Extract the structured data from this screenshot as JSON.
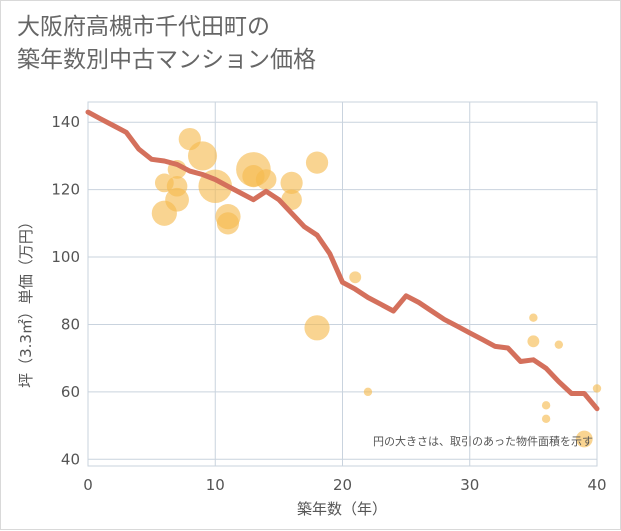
{
  "title": {
    "line1": "大阪府高槻市千代田町の",
    "line2": "築年数別中古マンション価格"
  },
  "note": "円の大きさは、取引のあった物件面積を示す",
  "chart_data": {
    "type": "scatter",
    "title": "大阪府高槻市千代田町の築年数別中古マンション価格",
    "xlabel": "築年数（年）",
    "ylabel": "坪（3.3㎡）単価（万円）",
    "xlim": [
      0,
      40
    ],
    "ylim": [
      38,
      146
    ],
    "xticks": [
      0,
      10,
      20,
      30,
      40
    ],
    "yticks": [
      40,
      60,
      80,
      100,
      120,
      140
    ],
    "grid": true,
    "colors": {
      "bubble": "#f5b94e",
      "line": "#d4705c",
      "grid": "#c9d3de"
    },
    "bubbles": [
      {
        "x": 6,
        "y": 122,
        "size": 5
      },
      {
        "x": 6,
        "y": 113,
        "size": 9
      },
      {
        "x": 7,
        "y": 126,
        "size": 5
      },
      {
        "x": 7,
        "y": 121,
        "size": 6
      },
      {
        "x": 7,
        "y": 117,
        "size": 8
      },
      {
        "x": 8,
        "y": 135,
        "size": 7
      },
      {
        "x": 9,
        "y": 130,
        "size": 12
      },
      {
        "x": 10,
        "y": 121,
        "size": 16
      },
      {
        "x": 11,
        "y": 112,
        "size": 9
      },
      {
        "x": 11,
        "y": 110,
        "size": 7
      },
      {
        "x": 13,
        "y": 126,
        "size": 17
      },
      {
        "x": 13,
        "y": 124,
        "size": 7
      },
      {
        "x": 14,
        "y": 123,
        "size": 6
      },
      {
        "x": 16,
        "y": 122,
        "size": 7
      },
      {
        "x": 16,
        "y": 117,
        "size": 6
      },
      {
        "x": 18,
        "y": 128,
        "size": 7
      },
      {
        "x": 18,
        "y": 79,
        "size": 9
      },
      {
        "x": 21,
        "y": 94,
        "size": 2
      },
      {
        "x": 22,
        "y": 60,
        "size": 1
      },
      {
        "x": 35,
        "y": 82,
        "size": 1
      },
      {
        "x": 35,
        "y": 75,
        "size": 2
      },
      {
        "x": 36,
        "y": 56,
        "size": 1
      },
      {
        "x": 36,
        "y": 52,
        "size": 1
      },
      {
        "x": 37,
        "y": 74,
        "size": 1
      },
      {
        "x": 39,
        "y": 46,
        "size": 4
      },
      {
        "x": 40,
        "y": 61,
        "size": 1
      }
    ],
    "trend": {
      "x": [
        0,
        1,
        2,
        3,
        4,
        5,
        6,
        7,
        8,
        9,
        10,
        11,
        12,
        13,
        14,
        15,
        16,
        17,
        18,
        19,
        20,
        21,
        22,
        23,
        24,
        25,
        26,
        27,
        28,
        29,
        30,
        31,
        32,
        33,
        34,
        35,
        36,
        37,
        38,
        39,
        40
      ],
      "y": [
        143,
        141,
        139,
        137,
        132,
        129,
        128.5,
        127.5,
        125.5,
        124.5,
        123,
        121,
        119,
        117,
        119.5,
        117,
        113,
        109,
        106.5,
        101,
        92.5,
        90.5,
        88,
        86,
        84,
        88.5,
        86.5,
        84,
        81.5,
        79.5,
        77.5,
        75.5,
        73.5,
        73,
        69,
        69.5,
        67,
        63,
        59.5,
        59.5,
        55
      ]
    }
  }
}
